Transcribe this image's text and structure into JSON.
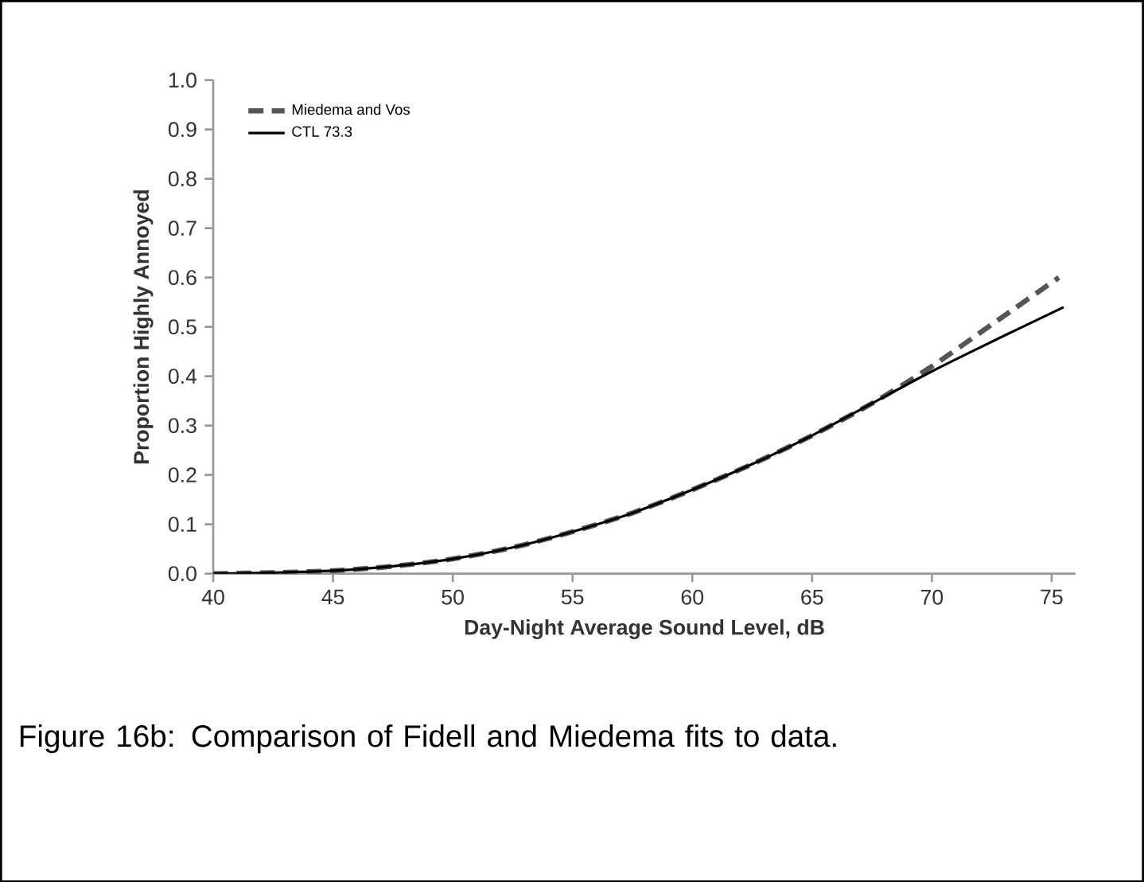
{
  "chart_data": {
    "type": "line",
    "xlabel": "Day-Night Average Sound Level, dB",
    "ylabel": "Proportion Highly Annoyed",
    "annotations": [
      "Figure 16b: Comparison of Fidell and Miedema fits to data."
    ],
    "xlim": [
      40,
      76
    ],
    "xticks": [
      40,
      45,
      50,
      55,
      60,
      65,
      70,
      75
    ],
    "ylim": [
      0,
      1
    ],
    "yticks": [
      {
        "value": 0,
        "label": "0.0"
      },
      {
        "value": 0.1,
        "label": "0.1"
      },
      {
        "value": 0.2,
        "label": "0.2"
      },
      {
        "value": 0.3,
        "label": "0.3"
      },
      {
        "value": 0.4,
        "label": "0.4"
      },
      {
        "value": 0.5,
        "label": "0.5"
      },
      {
        "value": 0.6,
        "label": "0.6"
      },
      {
        "value": 0.7,
        "label": "0.7"
      },
      {
        "value": 0.8,
        "label": "0.8"
      },
      {
        "value": 0.9,
        "label": "0.9"
      },
      {
        "value": 1,
        "label": "1.0"
      }
    ],
    "grid": false,
    "legend": "top left",
    "marker": "none",
    "series": [
      {
        "name": "Miedema and Vos",
        "color": "#555555",
        "line_style": "dashed",
        "x": [
          40,
          42.5,
          45,
          47.5,
          50,
          52.5,
          55,
          57.5,
          60,
          62.5,
          65,
          67.5,
          70,
          72.5,
          75.3
        ],
        "values": [
          0,
          0.002,
          0.006,
          0.015,
          0.03,
          0.053,
          0.085,
          0.123,
          0.17,
          0.222,
          0.28,
          0.345,
          0.42,
          0.505,
          0.6
        ]
      },
      {
        "name": "CTL 73.3",
        "color": "#000000",
        "line_style": "solid",
        "x": [
          40,
          42.5,
          45,
          47.5,
          50,
          52.5,
          55,
          57.5,
          60,
          62.5,
          65,
          67.5,
          70,
          72.5,
          75.5
        ],
        "values": [
          0,
          0.002,
          0.006,
          0.015,
          0.03,
          0.053,
          0.085,
          0.123,
          0.17,
          0.222,
          0.28,
          0.345,
          0.41,
          0.47,
          0.54
        ]
      }
    ]
  }
}
